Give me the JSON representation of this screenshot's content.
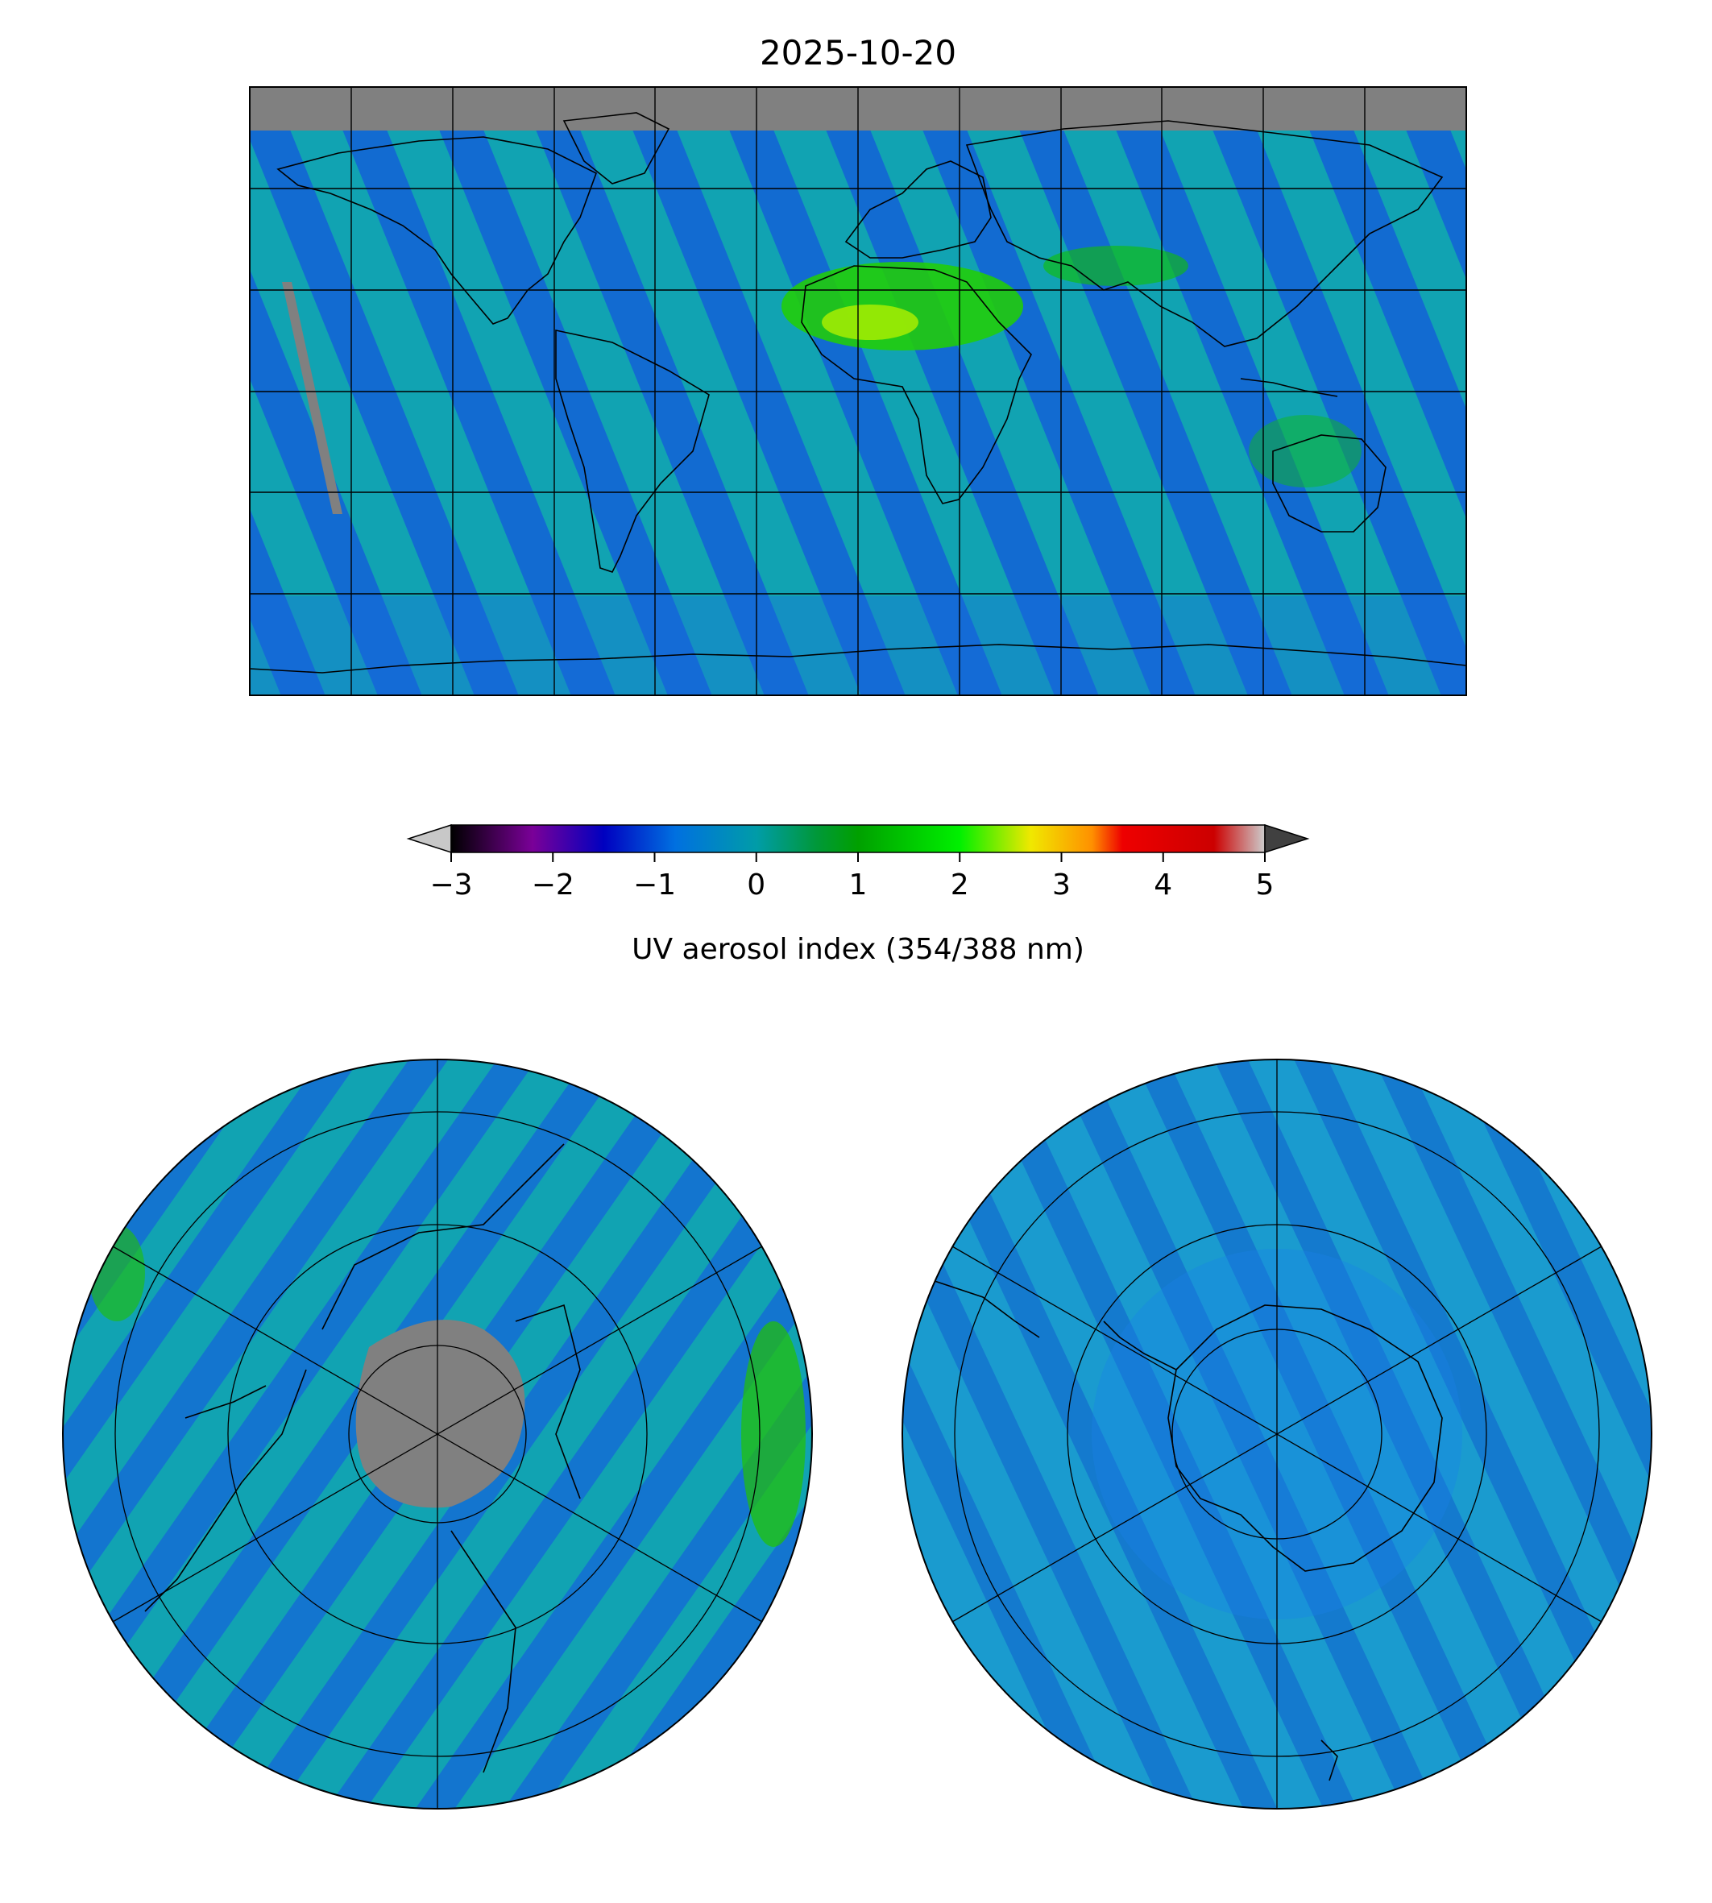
{
  "figure": {
    "title": "2025-10-20"
  },
  "colorbar": {
    "label": "UV aerosol index (354/388 nm)",
    "ticks": [
      {
        "value": -3,
        "label": "−3"
      },
      {
        "value": -2,
        "label": "−2"
      },
      {
        "value": -1,
        "label": "−1"
      },
      {
        "value": 0,
        "label": "0"
      },
      {
        "value": 1,
        "label": "1"
      },
      {
        "value": 2,
        "label": "2"
      },
      {
        "value": 3,
        "label": "3"
      },
      {
        "value": 4,
        "label": "4"
      },
      {
        "value": 5,
        "label": "5"
      }
    ],
    "range": [
      -3,
      5
    ],
    "extend": "both",
    "under_color": "#c8c8c8",
    "over_color": "#404040",
    "stops": [
      {
        "value": -3.0,
        "color": "#000000"
      },
      {
        "value": -2.2,
        "color": "#7a0098"
      },
      {
        "value": -1.5,
        "color": "#0000c0"
      },
      {
        "value": -0.8,
        "color": "#0070e0"
      },
      {
        "value": 0.0,
        "color": "#009ca8"
      },
      {
        "value": 0.6,
        "color": "#009838"
      },
      {
        "value": 1.0,
        "color": "#00a000"
      },
      {
        "value": 2.0,
        "color": "#00f000"
      },
      {
        "value": 2.7,
        "color": "#f0e800"
      },
      {
        "value": 3.3,
        "color": "#ff9000"
      },
      {
        "value": 3.6,
        "color": "#ee0000"
      },
      {
        "value": 4.5,
        "color": "#cc0000"
      },
      {
        "value": 5.0,
        "color": "#cccccc"
      }
    ]
  },
  "maps": {
    "global": {
      "projection": "equirectangular",
      "lon_range": [
        -180,
        180
      ],
      "lat_range": [
        -90,
        90
      ],
      "graticule_lon_step": 30,
      "graticule_lat_step": 30,
      "missing_color": "#808080",
      "background_color": "#1aa0c8"
    },
    "north_polar": {
      "projection": "north-polar-stereographic",
      "graticule_meridians": 6,
      "graticule_circles": 3,
      "missing_color": "#808080",
      "background_color": "#1aa0c8"
    },
    "south_polar": {
      "projection": "south-polar-stereographic",
      "graticule_meridians": 6,
      "graticule_circles": 3,
      "background_color": "#1aa0c8"
    }
  }
}
